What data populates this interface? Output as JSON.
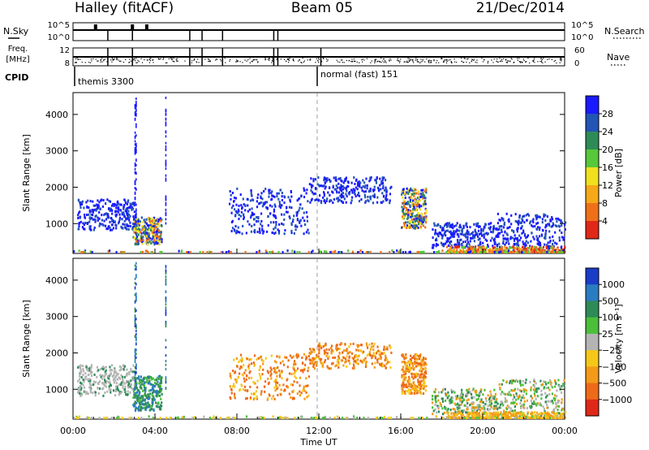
{
  "header": {
    "station": "Halley (fitACF)",
    "beam": "Beam 05",
    "date": "21/Dec/2014"
  },
  "nsky_panel": {
    "left_label": "N.Sky",
    "left_ticks": [
      "10^5",
      "10^0"
    ],
    "right_label": "N.Search",
    "right_ticks": [
      "10^5",
      "10^0"
    ],
    "spike_times_h": [
      1.7,
      2.9,
      5.7,
      6.3,
      7.3,
      9.8,
      10.0
    ],
    "bump_times_h": [
      1.1,
      2.9,
      3.6
    ]
  },
  "freq_panel": {
    "left_label_1": "Freq.",
    "left_label_2": "[MHz]",
    "left_ticks": [
      "12",
      "8"
    ],
    "right_label": "Nave",
    "right_ticks": [
      "60",
      "0"
    ],
    "spike_times_h": [
      1.7,
      2.9,
      5.7,
      6.3,
      7.3,
      9.8,
      10.0,
      12.1
    ]
  },
  "cpid": {
    "label": "CPID",
    "segments": [
      {
        "start_h": 0,
        "name": "themis 3300"
      },
      {
        "start_h": 12.0,
        "name": "normal (fast) 151"
      }
    ]
  },
  "chart_data": [
    {
      "type": "heatmap",
      "title": "Power",
      "ylabel": "Slant Range [km]",
      "xlabel": "",
      "xlim": [
        "00:00",
        "24:00"
      ],
      "ylim": [
        180,
        4600
      ],
      "yticks": [
        1000,
        2000,
        3000,
        4000
      ],
      "colorbar_label": "Power [dB]",
      "colorbar_ticks": [
        "4",
        "8",
        "12",
        "16",
        "20",
        "24",
        "28"
      ],
      "colorbar_colors": [
        "#1a1aff",
        "#2255b4",
        "#2e8b57",
        "#56c83a",
        "#f0e01e",
        "#f5a818",
        "#f07018",
        "#e02818"
      ],
      "marker_time_h": 12.0,
      "scatter_regions": [
        {
          "t": [
            0.2,
            3.0
          ],
          "r": [
            850,
            1700
          ],
          "v": "weak"
        },
        {
          "t": [
            2.9,
            4.3
          ],
          "r": [
            450,
            1200
          ],
          "v": "mixed"
        },
        {
          "t": [
            7.6,
            11.5
          ],
          "r": [
            750,
            2000
          ],
          "v": "weak"
        },
        {
          "t": [
            11.5,
            15.5
          ],
          "r": [
            1600,
            2300
          ],
          "v": "weak"
        },
        {
          "t": [
            16.0,
            17.2
          ],
          "r": [
            900,
            2000
          ],
          "v": "mixed"
        },
        {
          "t": [
            17.5,
            20.7
          ],
          "r": [
            350,
            1050
          ],
          "v": "weak"
        },
        {
          "t": [
            20.7,
            24.0
          ],
          "r": [
            250,
            1300
          ],
          "v": "weak"
        },
        {
          "t": [
            18.2,
            24.0
          ],
          "r": [
            180,
            400
          ],
          "v": "strong"
        },
        {
          "t": [
            0,
            24
          ],
          "r": [
            180,
            290
          ],
          "v": "ground"
        }
      ],
      "vertical_streaks_h": [
        3.0,
        3.05,
        4.5
      ]
    },
    {
      "type": "heatmap",
      "title": "Velocity",
      "ylabel": "Slant Range [km]",
      "xlabel": "Time UT",
      "xlim": [
        "00:00",
        "24:00"
      ],
      "ylim": [
        180,
        4600
      ],
      "yticks": [
        1000,
        2000,
        3000,
        4000
      ],
      "xticks": [
        "00:00",
        "04:00",
        "08:00",
        "12:00",
        "16:00",
        "20:00",
        "00:00"
      ],
      "colorbar_label": "Velocity [m s⁻¹]",
      "colorbar_ticks": [
        "1000",
        "500",
        "100",
        "25",
        "−25",
        "−100",
        "−500",
        "−1000"
      ],
      "colorbar_colors": [
        "#1a3cc8",
        "#2a7cc0",
        "#2e8b57",
        "#4bbf3a",
        "#b4b4b4",
        "#f5c818",
        "#f39a18",
        "#ee6a18",
        "#e02818"
      ],
      "marker_time_h": 12.0,
      "scatter_regions": [
        {
          "t": [
            0.2,
            3.0
          ],
          "r": [
            850,
            1700
          ],
          "v": "grey"
        },
        {
          "t": [
            2.9,
            4.3
          ],
          "r": [
            450,
            1400
          ],
          "v": "positive"
        },
        {
          "t": [
            7.6,
            11.5
          ],
          "r": [
            750,
            2000
          ],
          "v": "negative"
        },
        {
          "t": [
            11.5,
            15.5
          ],
          "r": [
            1600,
            2300
          ],
          "v": "negative"
        },
        {
          "t": [
            16.0,
            17.2
          ],
          "r": [
            900,
            2000
          ],
          "v": "negative"
        },
        {
          "t": [
            17.5,
            20.7
          ],
          "r": [
            350,
            1050
          ],
          "v": "mixed"
        },
        {
          "t": [
            20.7,
            24.0
          ],
          "r": [
            250,
            1300
          ],
          "v": "mixed"
        },
        {
          "t": [
            18.2,
            24.0
          ],
          "r": [
            180,
            400
          ],
          "v": "groundneg"
        },
        {
          "t": [
            0,
            24
          ],
          "r": [
            180,
            290
          ],
          "v": "ground"
        }
      ],
      "vertical_streaks_h": [
        3.0,
        3.05,
        4.5
      ]
    }
  ]
}
